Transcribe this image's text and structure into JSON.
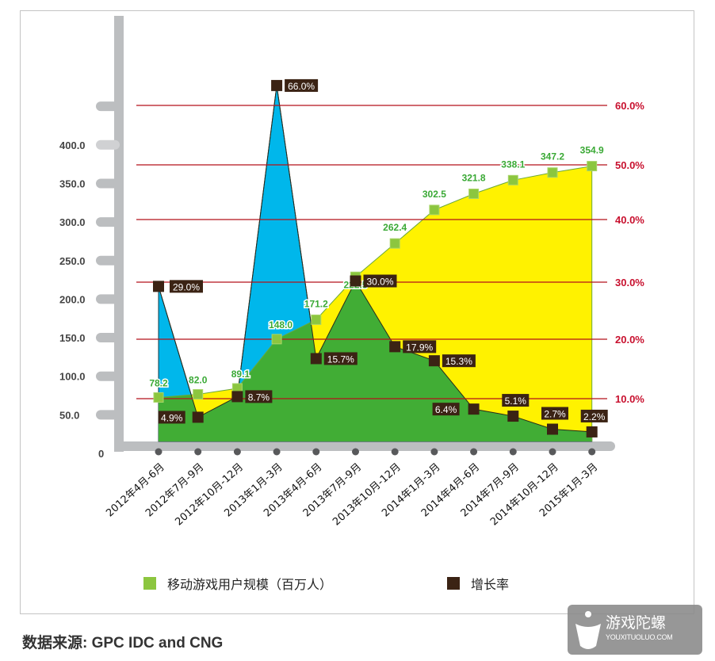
{
  "chart_data": {
    "type": "area",
    "categories": [
      "2012年4月-6月",
      "2012年7月-9月",
      "2012年10月-12月",
      "2013年1月-3月",
      "2013年4月-6月",
      "2013年7月-9月",
      "2013年10月-12月",
      "2014年1月-3月",
      "2014年4月-6月",
      "2014年7月-9月",
      "2014年10月-12月",
      "2015年1月-3月"
    ],
    "series": [
      {
        "name": "移动游戏用户规模（百万人）",
        "values": [
          78.2,
          82.0,
          89.1,
          148.0,
          171.2,
          222.5,
          262.4,
          302.5,
          321.8,
          338.1,
          347.2,
          354.9
        ],
        "labels": [
          "78.2",
          "82.0",
          "89.1",
          "148.0",
          "171.2",
          "222.5",
          "262.4",
          "302.5",
          "321.8",
          "338.1",
          "347.2",
          "354.9"
        ],
        "color": "#8cc63f",
        "axis": "left"
      },
      {
        "name": "增长率",
        "values": [
          29.0,
          4.9,
          8.7,
          66.0,
          15.7,
          30.0,
          17.9,
          15.3,
          6.4,
          5.1,
          2.7,
          2.2
        ],
        "labels": [
          "29.0%",
          "4.9%",
          "8.7%",
          "66.0%",
          "15.7%",
          "30.0%",
          "17.9%",
          "15.3%",
          "6.4%",
          "5.1%",
          "2.7%",
          "2.2%"
        ],
        "color": "#3b2314",
        "axis": "right"
      }
    ],
    "left_ticks": [
      "0",
      "50.0",
      "100.0",
      "150.0",
      "200.0",
      "250.0",
      "300.0",
      "350.0",
      "400.0"
    ],
    "right_ticks": [
      "10.0%",
      "20.0%",
      "30.0%",
      "40.0%",
      "50.0%",
      "60.0%"
    ],
    "ylim_left": [
      0,
      450
    ],
    "ylim_right": [
      0,
      60
    ],
    "grid": true,
    "legend": "bottom",
    "fill_colors": {
      "growth_above": "#00b7eb",
      "users_above": "#fff200",
      "overlap": "#41ad35",
      "grid": "#b5121b"
    }
  },
  "legend": {
    "users": "移动游戏用户规模（百万人）",
    "growth": "增长率"
  },
  "source": "数据来源: GPC IDC and CNG",
  "watermark": {
    "name": "游戏陀螺",
    "url": "YOUXITUOLUO.COM"
  }
}
